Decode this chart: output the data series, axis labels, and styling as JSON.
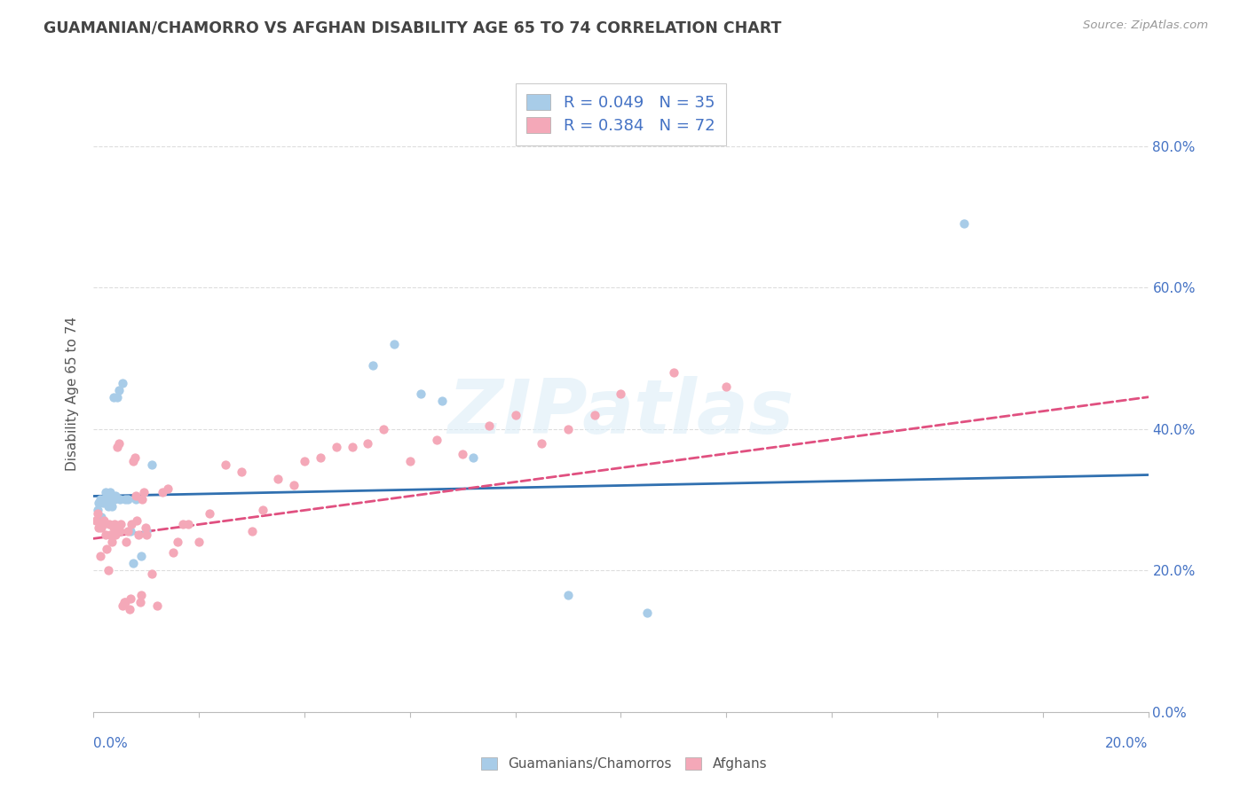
{
  "title": "GUAMANIAN/CHAMORRO VS AFGHAN DISABILITY AGE 65 TO 74 CORRELATION CHART",
  "source": "Source: ZipAtlas.com",
  "ylabel": "Disability Age 65 to 74",
  "legend_blue_label": "Guamanians/Chamorros",
  "legend_pink_label": "Afghans",
  "legend_blue_text": "R = 0.049   N = 35",
  "legend_pink_text": "R = 0.384   N = 72",
  "blue_color": "#a8cce8",
  "pink_color": "#f4a8b8",
  "line_blue_color": "#3070b0",
  "line_pink_color": "#e05080",
  "right_tick_color": "#4472c4",
  "bottom_tick_color": "#4472c4",
  "xlim": [
    0.0,
    0.2
  ],
  "ylim": [
    0.0,
    0.9
  ],
  "blue_scatter_x": [
    0.0008,
    0.001,
    0.0012,
    0.0015,
    0.0018,
    0.002,
    0.0022,
    0.0025,
    0.0028,
    0.003,
    0.0032,
    0.0035,
    0.0038,
    0.004,
    0.0042,
    0.0045,
    0.0048,
    0.005,
    0.0055,
    0.006,
    0.0065,
    0.007,
    0.0075,
    0.008,
    0.009,
    0.01,
    0.011,
    0.053,
    0.057,
    0.062,
    0.066,
    0.072,
    0.09,
    0.105,
    0.165
  ],
  "blue_scatter_y": [
    0.285,
    0.295,
    0.3,
    0.275,
    0.295,
    0.3,
    0.31,
    0.3,
    0.29,
    0.3,
    0.31,
    0.29,
    0.445,
    0.3,
    0.305,
    0.445,
    0.455,
    0.3,
    0.465,
    0.3,
    0.3,
    0.255,
    0.21,
    0.3,
    0.22,
    0.255,
    0.35,
    0.49,
    0.52,
    0.45,
    0.44,
    0.36,
    0.165,
    0.14,
    0.69
  ],
  "pink_scatter_x": [
    0.0005,
    0.0008,
    0.001,
    0.0012,
    0.0015,
    0.0018,
    0.002,
    0.0022,
    0.0025,
    0.0028,
    0.003,
    0.0032,
    0.0035,
    0.0038,
    0.004,
    0.0042,
    0.0045,
    0.0048,
    0.005,
    0.0052,
    0.0055,
    0.0058,
    0.006,
    0.0062,
    0.0065,
    0.0068,
    0.007,
    0.0072,
    0.0075,
    0.0078,
    0.008,
    0.0082,
    0.0085,
    0.0088,
    0.009,
    0.0092,
    0.0095,
    0.0098,
    0.01,
    0.011,
    0.012,
    0.013,
    0.014,
    0.015,
    0.016,
    0.017,
    0.018,
    0.02,
    0.022,
    0.025,
    0.028,
    0.03,
    0.032,
    0.035,
    0.038,
    0.04,
    0.043,
    0.046,
    0.049,
    0.052,
    0.055,
    0.06,
    0.065,
    0.07,
    0.075,
    0.08,
    0.085,
    0.09,
    0.095,
    0.1,
    0.11,
    0.12
  ],
  "pink_scatter_y": [
    0.27,
    0.28,
    0.26,
    0.22,
    0.26,
    0.265,
    0.27,
    0.25,
    0.23,
    0.2,
    0.265,
    0.25,
    0.24,
    0.26,
    0.265,
    0.25,
    0.375,
    0.38,
    0.255,
    0.265,
    0.15,
    0.155,
    0.155,
    0.24,
    0.255,
    0.145,
    0.16,
    0.265,
    0.355,
    0.36,
    0.305,
    0.27,
    0.25,
    0.155,
    0.165,
    0.3,
    0.31,
    0.26,
    0.25,
    0.195,
    0.15,
    0.31,
    0.315,
    0.225,
    0.24,
    0.265,
    0.265,
    0.24,
    0.28,
    0.35,
    0.34,
    0.255,
    0.285,
    0.33,
    0.32,
    0.355,
    0.36,
    0.375,
    0.375,
    0.38,
    0.4,
    0.355,
    0.385,
    0.365,
    0.405,
    0.42,
    0.38,
    0.4,
    0.42,
    0.45,
    0.48,
    0.46
  ]
}
